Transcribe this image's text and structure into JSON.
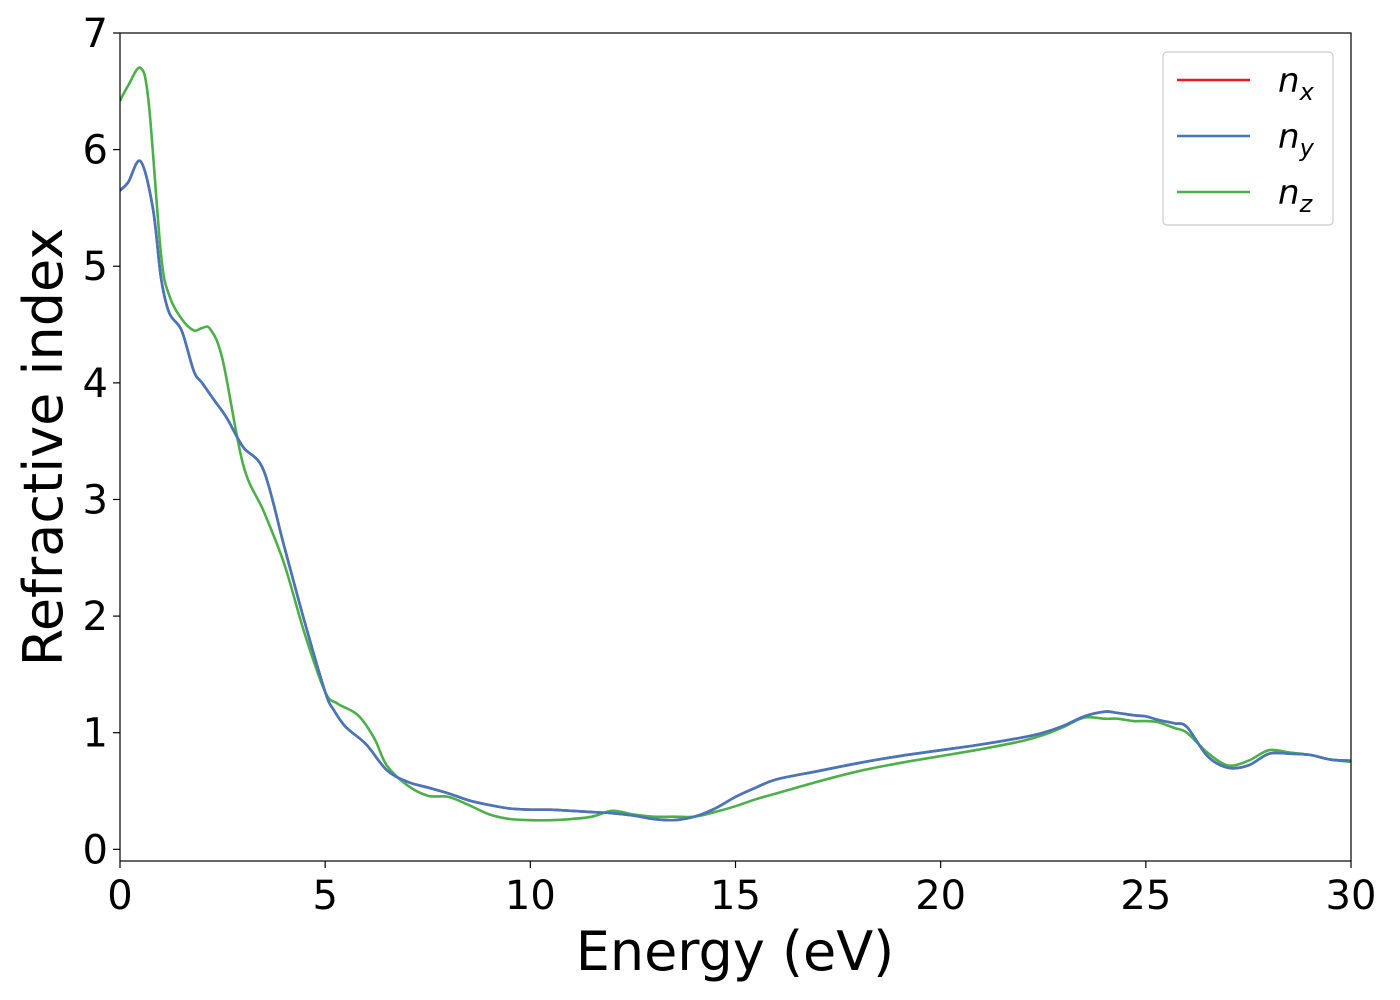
{
  "chart_data": {
    "type": "line",
    "xlabel": "Energy (eV)",
    "ylabel": "Refractive index",
    "xlim": [
      0,
      30
    ],
    "ylim": [
      -0.1,
      7.0
    ],
    "xticks": [
      0,
      5,
      10,
      15,
      20,
      25,
      30
    ],
    "yticks": [
      0,
      1,
      2,
      3,
      4,
      5,
      6,
      7
    ],
    "grid": false,
    "legend_position": "top-right",
    "series": [
      {
        "name": "n_x",
        "label_base": "n",
        "label_sub": "x",
        "color": "#e41a1c",
        "x": [
          0,
          0.2,
          0.5,
          0.8,
          1.0,
          1.2,
          1.5,
          1.8,
          2.0,
          2.3,
          2.6,
          3.0,
          3.5,
          4.0,
          4.5,
          5.0,
          5.2,
          5.5,
          6.0,
          6.5,
          7.0,
          7.5,
          8.0,
          8.5,
          9.0,
          9.5,
          10.0,
          10.5,
          11.0,
          11.5,
          12.0,
          12.5,
          13.0,
          13.5,
          14.0,
          14.5,
          15.0,
          15.5,
          16.0,
          17.0,
          18.0,
          19.0,
          20.0,
          21.0,
          22.0,
          22.5,
          23.0,
          23.5,
          24.0,
          24.3,
          24.7,
          25.0,
          25.3,
          25.7,
          26.0,
          26.5,
          27.0,
          27.5,
          28.0,
          28.5,
          29.0,
          29.5,
          30.0
        ],
        "y": [
          5.65,
          5.72,
          5.9,
          5.5,
          4.9,
          4.6,
          4.45,
          4.1,
          4.0,
          3.85,
          3.7,
          3.45,
          3.25,
          2.6,
          1.95,
          1.35,
          1.2,
          1.05,
          0.9,
          0.68,
          0.58,
          0.53,
          0.48,
          0.42,
          0.38,
          0.35,
          0.34,
          0.34,
          0.33,
          0.32,
          0.31,
          0.29,
          0.26,
          0.25,
          0.28,
          0.35,
          0.45,
          0.53,
          0.6,
          0.67,
          0.74,
          0.8,
          0.85,
          0.9,
          0.96,
          1.0,
          1.06,
          1.14,
          1.18,
          1.17,
          1.15,
          1.14,
          1.11,
          1.08,
          1.05,
          0.8,
          0.7,
          0.72,
          0.82,
          0.82,
          0.81,
          0.77,
          0.76
        ]
      },
      {
        "name": "n_y",
        "label_base": "n",
        "label_sub": "y",
        "color": "#4477bb",
        "x": [
          0,
          0.2,
          0.5,
          0.8,
          1.0,
          1.2,
          1.5,
          1.8,
          2.0,
          2.3,
          2.6,
          3.0,
          3.5,
          4.0,
          4.5,
          5.0,
          5.2,
          5.5,
          6.0,
          6.5,
          7.0,
          7.5,
          8.0,
          8.5,
          9.0,
          9.5,
          10.0,
          10.5,
          11.0,
          11.5,
          12.0,
          12.5,
          13.0,
          13.5,
          14.0,
          14.5,
          15.0,
          15.5,
          16.0,
          17.0,
          18.0,
          19.0,
          20.0,
          21.0,
          22.0,
          22.5,
          23.0,
          23.5,
          24.0,
          24.3,
          24.7,
          25.0,
          25.3,
          25.7,
          26.0,
          26.5,
          27.0,
          27.5,
          28.0,
          28.5,
          29.0,
          29.5,
          30.0
        ],
        "y": [
          5.65,
          5.72,
          5.9,
          5.5,
          4.9,
          4.6,
          4.45,
          4.1,
          4.0,
          3.85,
          3.7,
          3.45,
          3.25,
          2.6,
          1.95,
          1.35,
          1.2,
          1.05,
          0.9,
          0.68,
          0.58,
          0.53,
          0.48,
          0.42,
          0.38,
          0.35,
          0.34,
          0.34,
          0.33,
          0.32,
          0.31,
          0.29,
          0.26,
          0.25,
          0.28,
          0.35,
          0.45,
          0.53,
          0.6,
          0.67,
          0.74,
          0.8,
          0.85,
          0.9,
          0.96,
          1.0,
          1.06,
          1.14,
          1.18,
          1.17,
          1.15,
          1.14,
          1.11,
          1.08,
          1.05,
          0.8,
          0.7,
          0.72,
          0.82,
          0.82,
          0.81,
          0.77,
          0.76
        ]
      },
      {
        "name": "n_z",
        "label_base": "n",
        "label_sub": "z",
        "color": "#4daf4a",
        "x": [
          0,
          0.2,
          0.5,
          0.7,
          1.0,
          1.2,
          1.5,
          1.8,
          2.0,
          2.2,
          2.5,
          3.0,
          3.5,
          4.0,
          4.5,
          5.0,
          5.3,
          5.8,
          6.2,
          6.5,
          7.0,
          7.5,
          8.0,
          8.5,
          9.0,
          9.5,
          10.0,
          10.5,
          11.0,
          11.5,
          12.0,
          12.5,
          13.0,
          13.5,
          14.0,
          14.5,
          15.0,
          15.5,
          16.0,
          17.0,
          18.0,
          19.0,
          20.0,
          21.0,
          22.0,
          22.5,
          23.0,
          23.5,
          24.0,
          24.3,
          24.7,
          25.0,
          25.3,
          25.7,
          26.0,
          26.5,
          27.0,
          27.5,
          28.0,
          28.5,
          29.0,
          29.5,
          30.0
        ],
        "y": [
          6.42,
          6.55,
          6.7,
          6.4,
          5.1,
          4.75,
          4.55,
          4.45,
          4.47,
          4.46,
          4.2,
          3.3,
          2.9,
          2.45,
          1.85,
          1.35,
          1.25,
          1.15,
          0.95,
          0.72,
          0.55,
          0.46,
          0.45,
          0.38,
          0.3,
          0.26,
          0.25,
          0.25,
          0.26,
          0.28,
          0.33,
          0.3,
          0.28,
          0.28,
          0.28,
          0.32,
          0.37,
          0.43,
          0.48,
          0.58,
          0.67,
          0.74,
          0.8,
          0.86,
          0.93,
          0.98,
          1.05,
          1.13,
          1.12,
          1.12,
          1.1,
          1.1,
          1.09,
          1.04,
          1.0,
          0.83,
          0.72,
          0.76,
          0.85,
          0.83,
          0.81,
          0.77,
          0.75
        ]
      }
    ]
  }
}
